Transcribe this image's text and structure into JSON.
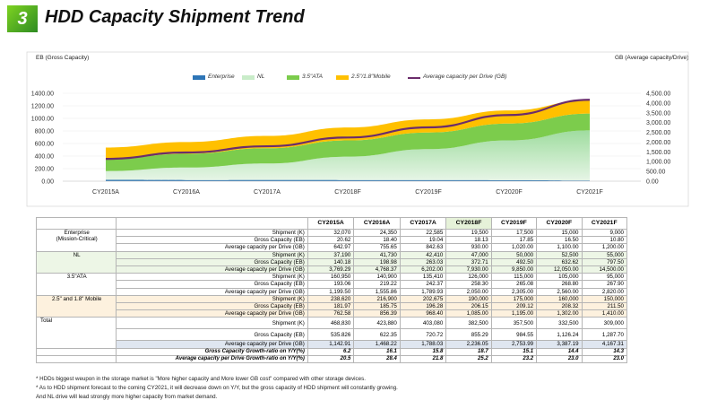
{
  "title": {
    "number": "3",
    "text": "HDD Capacity Shipment Trend"
  },
  "chart_data": {
    "type": "area",
    "left_axis_title": "EB (Gross Capacity)",
    "right_axis_title": "GB (Average capacity/Drive)",
    "categories": [
      "CY2015A",
      "CY2016A",
      "CY2017A",
      "CY2018F",
      "CY2019F",
      "CY2020F",
      "CY2021F"
    ],
    "left_ticks": [
      "1400.00",
      "1200.00",
      "1000.00",
      "800.00",
      "600.00",
      "400.00",
      "200.00",
      "0.00"
    ],
    "right_ticks": [
      "4,500.00",
      "4,000.00",
      "3,500.00",
      "3,000.00",
      "2,500.00",
      "2,000.00",
      "1,500.00",
      "1,000.00",
      "500.00",
      "0.00"
    ],
    "ylim_left": [
      0,
      1400
    ],
    "ylim_right": [
      0,
      4500
    ],
    "series": [
      {
        "name": "Enterprise",
        "color": "#2e75b6",
        "values": [
          20.62,
          18.4,
          19.04,
          18.13,
          17.85,
          16.5,
          10.8
        ]
      },
      {
        "name": "NL",
        "color": "#c9ecc9",
        "values": [
          140.18,
          198.98,
          263.03,
          372.71,
          492.5,
          632.62,
          797.5
        ]
      },
      {
        "name": "3.5\"ATA",
        "color": "#7ccc4c",
        "values": [
          193.06,
          219.22,
          242.37,
          258.3,
          265.08,
          268.8,
          267.9
        ]
      },
      {
        "name": "2.5\"/1.8\"Mobile",
        "color": "#ffc000",
        "values": [
          181.97,
          185.75,
          196.28,
          206.15,
          209.12,
          208.32,
          211.5
        ]
      },
      {
        "name": "Average capacity per Drive (GB)",
        "color": "#6b2d6b",
        "axis": "right",
        "values": [
          1142.91,
          1468.22,
          1788.03,
          2236.05,
          2753.99,
          3387.19,
          4167.31
        ]
      }
    ],
    "legend_position": "top"
  },
  "table": {
    "headers": [
      "CY2015A",
      "CY2016A",
      "CY2017A",
      "CY2018F",
      "CY2019F",
      "CY2020F",
      "CY2021F"
    ],
    "segments": [
      {
        "name": "Enterprise\n(Mission-Critical)",
        "cls": "bg-ent",
        "rows": [
          {
            "label": "Shipment (K)",
            "values": [
              "32,070",
              "24,350",
              "22,585",
              "19,500",
              "17,500",
              "15,000",
              "9,000"
            ]
          },
          {
            "label": "Gross Capacity (EB)",
            "values": [
              "20.62",
              "18.40",
              "19.04",
              "18.13",
              "17.85",
              "16.50",
              "10.80"
            ]
          },
          {
            "label": "Average capacity per Drive (GB)",
            "values": [
              "642.97",
              "755.65",
              "842.63",
              "930.00",
              "1,020.00",
              "1,100.00",
              "1,200.00"
            ]
          }
        ]
      },
      {
        "name": "NL",
        "cls": "bg-nl",
        "rows": [
          {
            "label": "Shipment (K)",
            "values": [
              "37,190",
              "41,730",
              "42,410",
              "47,000",
              "50,000",
              "52,500",
              "55,000"
            ]
          },
          {
            "label": "Gross  Capacity (EB)",
            "values": [
              "140.18",
              "198.98",
              "263.03",
              "372.71",
              "492.50",
              "632.62",
              "797.50"
            ]
          },
          {
            "label": "Average capacity per Drive (GB)",
            "values": [
              "3,769.29",
              "4,768.37",
              "6,202.00",
              "7,930.00",
              "9,850.00",
              "12,050.00",
              "14,500.00"
            ]
          }
        ]
      },
      {
        "name": "3.5\"ATA",
        "cls": "bg-ata",
        "rows": [
          {
            "label": "Shipment (K)",
            "values": [
              "160,950",
              "140,900",
              "135,410",
              "126,000",
              "115,000",
              "105,000",
              "95,000"
            ]
          },
          {
            "label": "Gross Capacity (EB)",
            "values": [
              "193.06",
              "219.22",
              "242.37",
              "258.30",
              "265.08",
              "268.80",
              "267.90"
            ]
          },
          {
            "label": "Average capacity per Drive (GB)",
            "values": [
              "1,199.50",
              "1,555.86",
              "1,789.93",
              "2,050.00",
              "2,305.00",
              "2,560.00",
              "2,820.00"
            ]
          }
        ]
      },
      {
        "name": "2.5\" and 1.8\" Mobile",
        "cls": "bg-mob",
        "rows": [
          {
            "label": "Shipment (K)",
            "values": [
              "238,620",
              "216,900",
              "202,675",
              "190,000",
              "175,000",
              "160,000",
              "150,000"
            ]
          },
          {
            "label": "Gross  Capacity (EB)",
            "values": [
              "181.97",
              "185.75",
              "196.28",
              "206.15",
              "209.12",
              "208.32",
              "211.50"
            ]
          },
          {
            "label": "Average capacity per Drive (GB)",
            "values": [
              "762.58",
              "856.39",
              "968.40",
              "1,085.00",
              "1,195.00",
              "1,302.00",
              "1,410.00"
            ]
          }
        ]
      }
    ],
    "total": {
      "name": "Total",
      "rows": [
        {
          "label": "Shipment (K)",
          "values": [
            "468,830",
            "423,880",
            "403,080",
            "382,500",
            "357,500",
            "332,500",
            "309,000"
          ]
        },
        {
          "label": "Gross Capacity (EB)",
          "values": [
            "535.826",
            "622.35",
            "720.72",
            "855.29",
            "984.55",
            "1,126.24",
            "1,287.70"
          ]
        },
        {
          "label": "Average capacity per Drive (GB)",
          "values": [
            "1,142.91",
            "1,468.22",
            "1,788.03",
            "2,236.05",
            "2,753.99",
            "3,387.19",
            "4,167.31"
          ]
        }
      ]
    },
    "growth": [
      {
        "label": "Gross Capacity Growth-ratio on Y/Y(%)",
        "values": [
          "6.2",
          "16.1",
          "15.8",
          "18.7",
          "15.1",
          "14.4",
          "14.3"
        ]
      },
      {
        "label": "Average capacity per Drive Growth-ratio on Y/Y(%)",
        "values": [
          "20.5",
          "28.4",
          "21.8",
          "25.2",
          "23.2",
          "23.0",
          "23.0"
        ]
      }
    ]
  },
  "notes": [
    "* HDDs  biggest weupon in the storage market is \"More higher capacity and More lower GB cost\"  compared with other storage devices.",
    "* As to HDD shipment forecast to the coming CY2021, it will decrease down on Y/Y,   but the gross capacity of HDD shipment will constantly growing.",
    "And NL drive will lead strongly more higher capacity from market demand."
  ]
}
